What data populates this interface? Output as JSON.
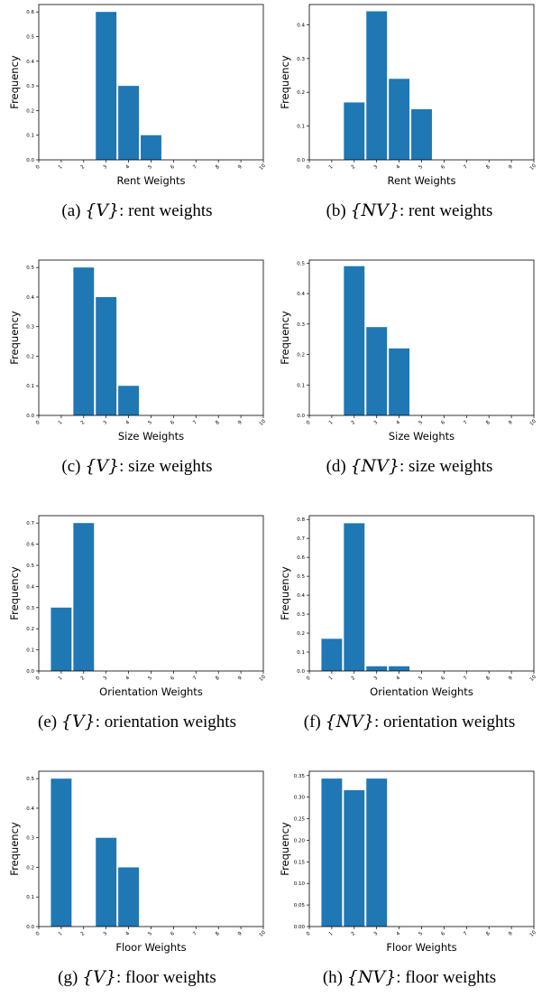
{
  "figure": {
    "panels": [
      {
        "caption": {
          "letter": "(a)",
          "set": "{V}",
          "text": ": rent weights"
        }
      },
      {
        "caption": {
          "letter": "(b)",
          "set": "{NV}",
          "text": ": rent weights"
        }
      },
      {
        "caption": {
          "letter": "(c)",
          "set": "{V}",
          "text": ": size weights"
        }
      },
      {
        "caption": {
          "letter": "(d)",
          "set": "{NV}",
          "text": ": size weights"
        }
      },
      {
        "caption": {
          "letter": "(e)",
          "set": "{V}",
          "text": ": orientation weights"
        }
      },
      {
        "caption": {
          "letter": "(f)",
          "set": "{NV}",
          "text": ": orientation weights"
        }
      },
      {
        "caption": {
          "letter": "(g)",
          "set": "{V}",
          "text": ": floor weights"
        }
      },
      {
        "caption": {
          "letter": "(h)",
          "set": "{NV}",
          "text": ": floor weights"
        }
      }
    ]
  },
  "colors": {
    "bar": "#1f77b4",
    "axes": "#000000"
  },
  "chart_data": [
    {
      "type": "bar",
      "xlabel": "Rent Weights",
      "ylabel": "Frequency",
      "xlim": [
        0,
        10
      ],
      "ylim": [
        0,
        0.63
      ],
      "x_ticks": [
        0,
        1,
        2,
        3,
        4,
        5,
        6,
        7,
        8,
        9,
        10
      ],
      "y_ticks": [
        "0.0",
        "0.1",
        "0.2",
        "0.3",
        "0.4",
        "0.5",
        "0.6"
      ],
      "bars": [
        {
          "x": 3,
          "value": 0.6
        },
        {
          "x": 4,
          "value": 0.3
        },
        {
          "x": 5,
          "value": 0.1
        }
      ]
    },
    {
      "type": "bar",
      "xlabel": "Rent Weights",
      "ylabel": "Frequency",
      "xlim": [
        0,
        10
      ],
      "ylim": [
        0,
        0.46
      ],
      "x_ticks": [
        0,
        1,
        2,
        3,
        4,
        5,
        6,
        7,
        8,
        9,
        10
      ],
      "y_ticks": [
        "0.0",
        "0.1",
        "0.2",
        "0.3",
        "0.4"
      ],
      "bars": [
        {
          "x": 2,
          "value": 0.17
        },
        {
          "x": 3,
          "value": 0.44
        },
        {
          "x": 4,
          "value": 0.24
        },
        {
          "x": 5,
          "value": 0.15
        }
      ]
    },
    {
      "type": "bar",
      "xlabel": "Size Weights",
      "ylabel": "Frequency",
      "xlim": [
        0,
        10
      ],
      "ylim": [
        0,
        0.525
      ],
      "x_ticks": [
        0,
        1,
        2,
        3,
        4,
        5,
        6,
        7,
        8,
        9,
        10
      ],
      "y_ticks": [
        "0.0",
        "0.1",
        "0.2",
        "0.3",
        "0.4",
        "0.5"
      ],
      "bars": [
        {
          "x": 2,
          "value": 0.5
        },
        {
          "x": 3,
          "value": 0.4
        },
        {
          "x": 4,
          "value": 0.1
        }
      ]
    },
    {
      "type": "bar",
      "xlabel": "Size Weights",
      "ylabel": "Frequency",
      "xlim": [
        0,
        10
      ],
      "ylim": [
        0,
        0.51
      ],
      "x_ticks": [
        0,
        1,
        2,
        3,
        4,
        5,
        6,
        7,
        8,
        9,
        10
      ],
      "y_ticks": [
        "0.0",
        "0.1",
        "0.2",
        "0.3",
        "0.4",
        "0.5"
      ],
      "bars": [
        {
          "x": 2,
          "value": 0.49
        },
        {
          "x": 3,
          "value": 0.29
        },
        {
          "x": 4,
          "value": 0.22
        }
      ]
    },
    {
      "type": "bar",
      "xlabel": "Orientation Weights",
      "ylabel": "Frequency",
      "xlim": [
        0,
        10
      ],
      "ylim": [
        0,
        0.735
      ],
      "x_ticks": [
        0,
        1,
        2,
        3,
        4,
        5,
        6,
        7,
        8,
        9,
        10
      ],
      "y_ticks": [
        "0.0",
        "0.1",
        "0.2",
        "0.3",
        "0.4",
        "0.5",
        "0.6",
        "0.7"
      ],
      "bars": [
        {
          "x": 1,
          "value": 0.3
        },
        {
          "x": 2,
          "value": 0.7
        }
      ]
    },
    {
      "type": "bar",
      "xlabel": "Orientation Weights",
      "ylabel": "Frequency",
      "xlim": [
        0,
        10
      ],
      "ylim": [
        0,
        0.82
      ],
      "x_ticks": [
        0,
        1,
        2,
        3,
        4,
        5,
        6,
        7,
        8,
        9,
        10
      ],
      "y_ticks": [
        "0.0",
        "0.1",
        "0.2",
        "0.3",
        "0.4",
        "0.5",
        "0.6",
        "0.7",
        "0.8"
      ],
      "bars": [
        {
          "x": 1,
          "value": 0.17
        },
        {
          "x": 2,
          "value": 0.78
        },
        {
          "x": 3,
          "value": 0.025
        },
        {
          "x": 4,
          "value": 0.025
        }
      ]
    },
    {
      "type": "bar",
      "xlabel": "Floor Weights",
      "ylabel": "Frequency",
      "xlim": [
        0,
        10
      ],
      "ylim": [
        0,
        0.525
      ],
      "x_ticks": [
        0,
        1,
        2,
        3,
        4,
        5,
        6,
        7,
        8,
        9,
        10
      ],
      "y_ticks": [
        "0.0",
        "0.1",
        "0.2",
        "0.3",
        "0.4",
        "0.5"
      ],
      "bars": [
        {
          "x": 1,
          "value": 0.5
        },
        {
          "x": 3,
          "value": 0.3
        },
        {
          "x": 4,
          "value": 0.2
        }
      ]
    },
    {
      "type": "bar",
      "xlabel": "Floor Weights",
      "ylabel": "Frequency",
      "xlim": [
        0,
        10
      ],
      "ylim": [
        0,
        0.36
      ],
      "x_ticks": [
        0,
        1,
        2,
        3,
        4,
        5,
        6,
        7,
        8,
        9,
        10
      ],
      "y_ticks": [
        "0.00",
        "0.05",
        "0.10",
        "0.15",
        "0.20",
        "0.25",
        "0.30",
        "0.35"
      ],
      "bars": [
        {
          "x": 1,
          "value": 0.343
        },
        {
          "x": 2,
          "value": 0.316
        },
        {
          "x": 3,
          "value": 0.343
        }
      ]
    }
  ]
}
